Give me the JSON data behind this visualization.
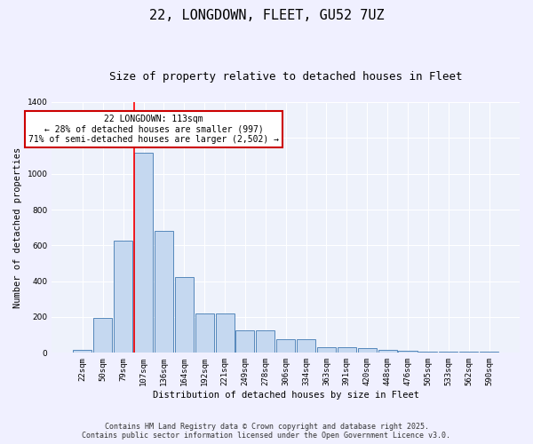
{
  "title_line1": "22, LONGDOWN, FLEET, GU52 7UZ",
  "title_line2": "Size of property relative to detached houses in Fleet",
  "xlabel": "Distribution of detached houses by size in Fleet",
  "ylabel": "Number of detached properties",
  "categories": [
    "22sqm",
    "50sqm",
    "79sqm",
    "107sqm",
    "136sqm",
    "164sqm",
    "192sqm",
    "221sqm",
    "249sqm",
    "278sqm",
    "306sqm",
    "334sqm",
    "363sqm",
    "391sqm",
    "420sqm",
    "448sqm",
    "476sqm",
    "505sqm",
    "533sqm",
    "562sqm",
    "590sqm"
  ],
  "values": [
    15,
    195,
    625,
    1115,
    680,
    425,
    220,
    220,
    125,
    125,
    75,
    75,
    30,
    30,
    25,
    15,
    10,
    5,
    5,
    5,
    5
  ],
  "bar_color": "#c5d8f0",
  "bar_edge_color": "#5588bb",
  "bg_color": "#eef2fb",
  "grid_color": "#ffffff",
  "red_line_index": 3,
  "annotation_text": "22 LONGDOWN: 113sqm\n← 28% of detached houses are smaller (997)\n71% of semi-detached houses are larger (2,502) →",
  "annotation_box_color": "#ffffff",
  "annotation_box_edge": "#cc0000",
  "ylim": [
    0,
    1400
  ],
  "yticks": [
    0,
    200,
    400,
    600,
    800,
    1000,
    1200,
    1400
  ],
  "footer_line1": "Contains HM Land Registry data © Crown copyright and database right 2025.",
  "footer_line2": "Contains public sector information licensed under the Open Government Licence v3.0.",
  "title_fontsize": 11,
  "subtitle_fontsize": 9,
  "axis_label_fontsize": 7.5,
  "tick_fontsize": 6.5,
  "annotation_fontsize": 7,
  "footer_fontsize": 6
}
